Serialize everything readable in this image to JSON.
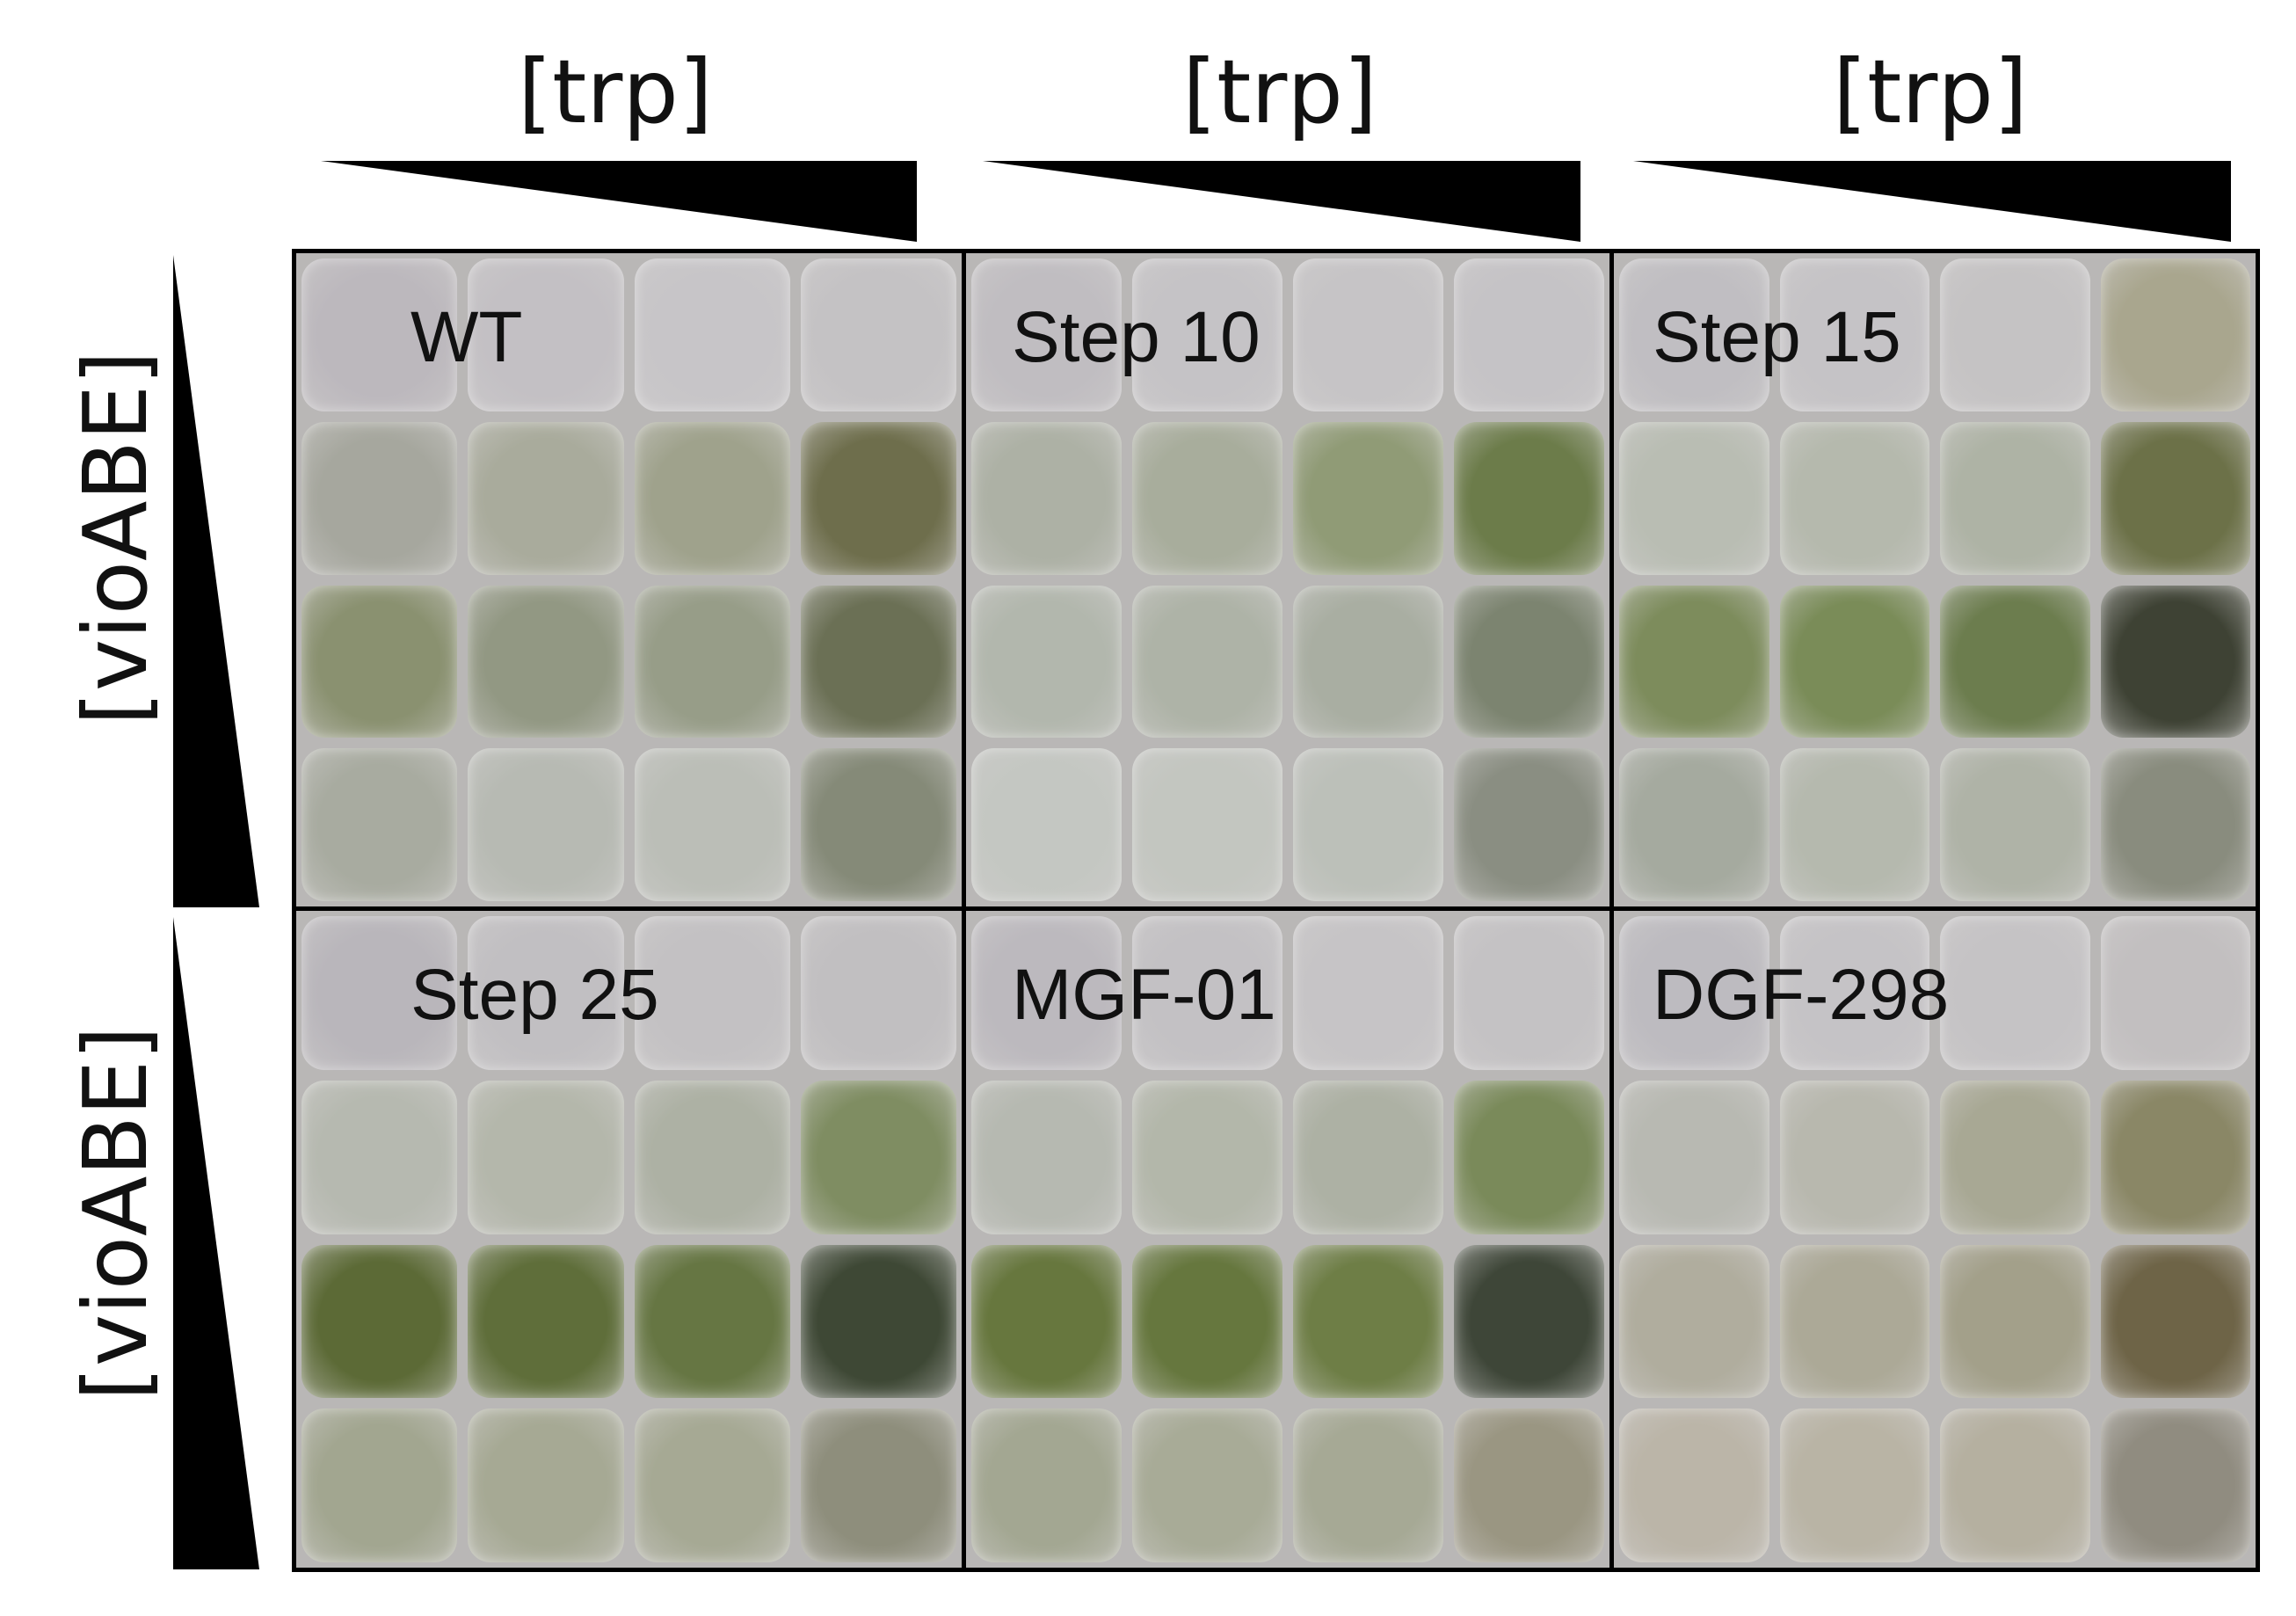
{
  "axis_labels": {
    "column": "[trp]",
    "row": "[vioABE]"
  },
  "panels": [
    {
      "label": "WT",
      "wells": [
        [
          "#bcb8bd",
          "#c3c0c4",
          "#c7c5c8",
          "#c4c2c4"
        ],
        [
          "#a6a79e",
          "#a9ab9c",
          "#9fa28c",
          "#6e6e4c"
        ],
        [
          "#8a9170",
          "#929883",
          "#979d88",
          "#6b7055"
        ],
        [
          "#a8aba0",
          "#b7bab3",
          "#bbbeb7",
          "#858a78"
        ]
      ]
    },
    {
      "label": "Step 10",
      "wells": [
        [
          "#c0bdc1",
          "#c5c3c6",
          "#c6c4c6",
          "#c5c3c6"
        ],
        [
          "#adb1a5",
          "#a8ad9c",
          "#909b76",
          "#6c7c4a"
        ],
        [
          "#b2b7ad",
          "#aeb3a7",
          "#a9aea2",
          "#7c8470"
        ],
        [
          "#c4c7c2",
          "#c3c6c0",
          "#bcc0b9",
          "#8a8e82"
        ]
      ]
    },
    {
      "label": "Step 15",
      "wells": [
        [
          "#c0bec2",
          "#c5c3c6",
          "#c5c3c4",
          "#a9a68e"
        ],
        [
          "#b9bdb3",
          "#b5b9ad",
          "#aeb3a5",
          "#6c7148"
        ],
        [
          "#7d8c5c",
          "#7a8c58",
          "#6c7d4e",
          "#3e4234"
        ],
        [
          "#a5aa9f",
          "#b5b9ae",
          "#afb3a7",
          "#898c7e"
        ]
      ]
    },
    {
      "label": "Step 25",
      "wells": [
        [
          "#b9b6bb",
          "#c1bfc2",
          "#c3c1c3",
          "#c1bfc1"
        ],
        [
          "#b6b9b0",
          "#b4b7ab",
          "#adb1a4",
          "#7f8d62"
        ],
        [
          "#5c6a36",
          "#5f6e3a",
          "#667643",
          "#3e4835"
        ],
        [
          "#a2a690",
          "#a6a994",
          "#a6a994",
          "#8e8e7c"
        ]
      ]
    },
    {
      "label": "MGF-01",
      "wells": [
        [
          "#bcb9be",
          "#c3c1c4",
          "#c6c4c6",
          "#c4c2c4"
        ],
        [
          "#b6b9b1",
          "#b3b7aa",
          "#adb1a4",
          "#7a8a5a"
        ],
        [
          "#67773e",
          "#66773e",
          "#6e7e46",
          "#3e4638"
        ],
        [
          "#a3a792",
          "#a8ab97",
          "#a6a995",
          "#9a9682"
        ]
      ]
    },
    {
      "label": "DGF-298",
      "wells": [
        [
          "#bdbbc0",
          "#c5c3c6",
          "#c5c3c5",
          "#c2bfc0"
        ],
        [
          "#b8b9b2",
          "#b8b8ae",
          "#a8a894",
          "#8a8766"
        ],
        [
          "#b0ad9e",
          "#aca997",
          "#a3a08a",
          "#6e6447"
        ],
        [
          "#bbb5a8",
          "#b9b4a5",
          "#b5b0a0",
          "#908c80"
        ]
      ]
    }
  ]
}
